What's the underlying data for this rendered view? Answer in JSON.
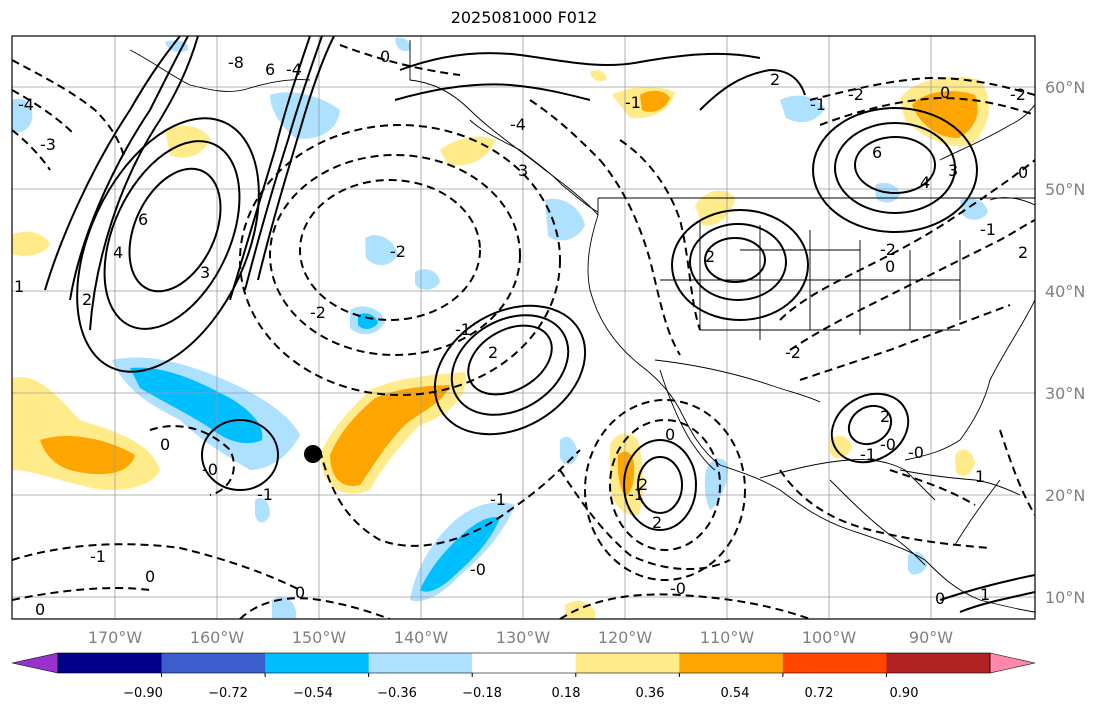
{
  "title": "2025081000 F012",
  "map": {
    "lat_labels": [
      "60°N",
      "50°N",
      "40°N",
      "30°N",
      "20°N",
      "10°N"
    ],
    "lon_labels": [
      "170°W",
      "160°W",
      "150°W",
      "140°W",
      "130°W",
      "120°W",
      "110°W",
      "100°W",
      "90°W"
    ],
    "contour_labels": [
      "-8",
      "6",
      "-4",
      "0",
      "-4",
      "-3",
      "6",
      "4",
      "2",
      "1",
      "3",
      "-2",
      "-1",
      "2",
      "3",
      "-1",
      "0",
      "0",
      "-1",
      "0",
      "-2",
      "6",
      "4",
      "3",
      "2",
      "-1",
      "0",
      "-2",
      "-2",
      "2",
      "-1",
      "-4",
      "2",
      "2",
      "0",
      "-1",
      "-0",
      "0",
      "-1",
      "-0",
      "-0",
      "1",
      "2",
      "-0",
      "-1",
      "-0",
      "0",
      "-2",
      "0",
      "-1",
      "2",
      "0",
      "-2",
      "1"
    ],
    "marker": "storm-location",
    "colors": {
      "positive_shades": [
        "#ffeb8a",
        "#ffa500",
        "#ff4500",
        "#b22222",
        "#ff88aa"
      ],
      "negative_shades": [
        "#aee0ff",
        "#00bfff",
        "#3a5fcd",
        "#00008b",
        "#9932cc"
      ]
    }
  },
  "colorbar": {
    "ticks": [
      "−0.90",
      "−0.72",
      "−0.54",
      "−0.36",
      "−0.18",
      "0.18",
      "0.36",
      "0.54",
      "0.72",
      "0.90"
    ],
    "colors": [
      "#9932cc",
      "#00008b",
      "#3a5fcd",
      "#00bfff",
      "#aee0ff",
      "#ffffff",
      "#ffeb8a",
      "#ffa500",
      "#ff4500",
      "#b22222",
      "#ff88aa"
    ]
  }
}
